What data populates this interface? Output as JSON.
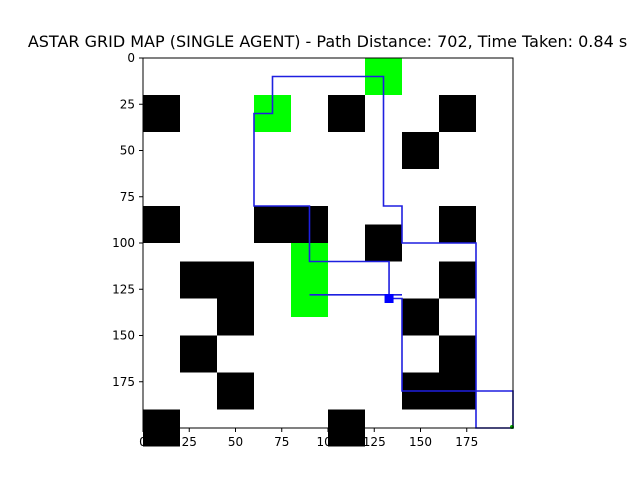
{
  "chart_data": {
    "type": "heatmap",
    "title": "ASTAR GRID MAP (SINGLE AGENT) - Path Distance: 702, Time Taken: 0.84 s",
    "xlabel": "",
    "ylabel": "",
    "xlim": [
      0,
      200
    ],
    "ylim": [
      200,
      0
    ],
    "x_ticks": [
      "0",
      "25",
      "50",
      "75",
      "100",
      "125",
      "150",
      "175"
    ],
    "y_ticks": [
      "0",
      "25",
      "50",
      "75",
      "100",
      "125",
      "150",
      "175"
    ],
    "cell_size": 20,
    "grid": false,
    "colors": {
      "obstacle": "#000000",
      "goal": "#00ff00",
      "path": "#1f1fe0",
      "start": "#0000ff",
      "background": "#ffffff"
    },
    "obstacles": [
      [
        0,
        20
      ],
      [
        100,
        20
      ],
      [
        160,
        20
      ],
      [
        140,
        40
      ],
      [
        0,
        80
      ],
      [
        60,
        80
      ],
      [
        80,
        80
      ],
      [
        160,
        80
      ],
      [
        120,
        90
      ],
      [
        20,
        110
      ],
      [
        40,
        110
      ],
      [
        160,
        110
      ],
      [
        40,
        130
      ],
      [
        140,
        130
      ],
      [
        20,
        150
      ],
      [
        160,
        150
      ],
      [
        40,
        170
      ],
      [
        140,
        170
      ],
      [
        160,
        170
      ],
      [
        0,
        190
      ],
      [
        100,
        190
      ]
    ],
    "goals": [
      [
        120,
        0
      ],
      [
        60,
        20
      ],
      [
        80,
        100
      ],
      [
        80,
        120
      ]
    ],
    "path": [
      [
        200,
        200
      ],
      [
        200,
        180
      ],
      [
        180,
        180
      ],
      [
        180,
        100
      ],
      [
        140,
        100
      ],
      [
        140,
        80
      ],
      [
        130,
        80
      ],
      [
        130,
        10
      ],
      [
        70,
        10
      ],
      [
        70,
        30
      ],
      [
        60,
        30
      ],
      [
        60,
        80
      ],
      [
        90,
        80
      ],
      [
        90,
        110
      ],
      [
        133,
        110
      ],
      [
        133,
        130
      ],
      [
        140,
        130
      ],
      [
        140,
        180
      ],
      [
        180,
        180
      ],
      [
        180,
        200
      ],
      [
        200,
        200
      ],
      [
        200,
        180
      ],
      [
        180,
        180
      ]
    ],
    "path_tail": [
      [
        140,
        128
      ],
      [
        90,
        128
      ]
    ],
    "start": [
      133,
      130
    ]
  }
}
